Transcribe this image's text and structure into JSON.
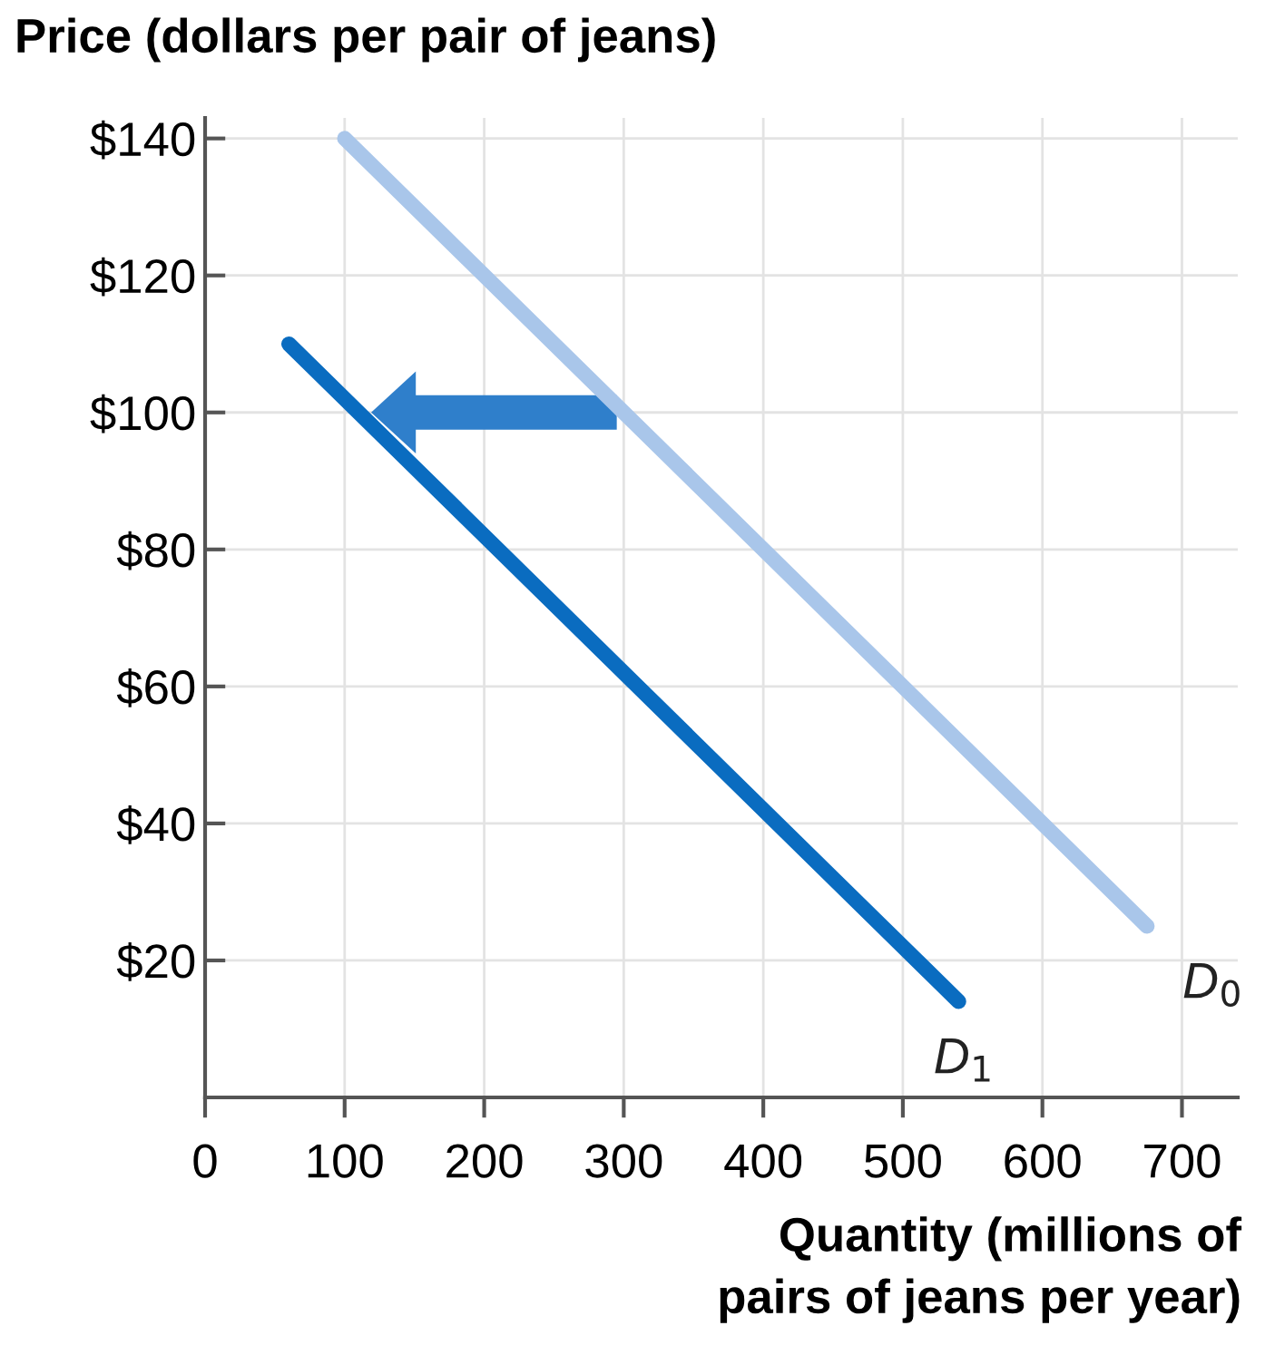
{
  "chart_data": {
    "type": "line",
    "ylabel": "Price (dollars per pair of jeans)",
    "xlabel": "Quantity (millions of\npairs of jeans per year)",
    "series": [
      {
        "name": "D$_{0}$",
        "color": "#a9c6ea",
        "x": [
          100,
          675
        ],
        "values": [
          140,
          25
        ]
      },
      {
        "name": "D$_{1}$",
        "color": "#0a6cc0",
        "x": [
          60,
          540
        ],
        "values": [
          110,
          14
        ]
      }
    ],
    "xlim": [
      0,
      740
    ],
    "ylim": [
      0,
      143
    ],
    "xticks": [
      {
        "value": 0,
        "label": "0"
      },
      100,
      200,
      300,
      400,
      500,
      600,
      700
    ],
    "yticks": [
      {
        "value": 20,
        "label": "$20"
      },
      {
        "value": 40,
        "label": "$40"
      },
      {
        "value": 60,
        "label": "$60"
      },
      {
        "value": 80,
        "label": "$80"
      },
      {
        "value": 100,
        "label": "$100"
      },
      {
        "value": 120,
        "label": "$120"
      },
      {
        "value": 140,
        "label": "$140"
      }
    ],
    "grid": true,
    "legend": false,
    "marker": "none",
    "line_style": "solid"
  }
}
